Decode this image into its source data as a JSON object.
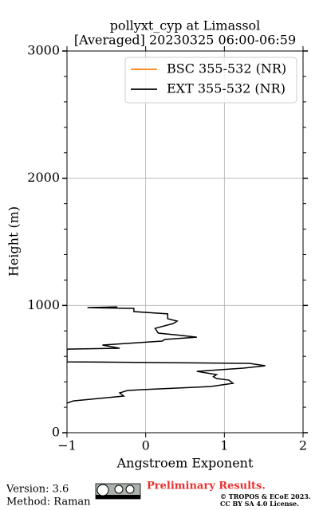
{
  "chart_data": {
    "type": "line",
    "title": [
      "pollyxt_cyp at Limassol",
      "[Averaged] 20230325 06:00-06:59"
    ],
    "x_label": "Angstroem Exponent",
    "y_label": "Height (m)",
    "xlim": [
      -1,
      2
    ],
    "xticks": [
      {
        "value": -1,
        "label": "−1"
      },
      0,
      1,
      2
    ],
    "ylim": [
      0,
      3000
    ],
    "yticks": [
      0,
      1000,
      2000,
      3000
    ],
    "yminorticks": [
      200,
      400,
      600,
      800,
      1200,
      1400,
      1600,
      1800,
      2200,
      2400,
      2600,
      2800
    ],
    "grid": true,
    "legend": "upper right",
    "series": [
      {
        "name": "BSC 355-532 (NR)",
        "color": "#ff7f0e",
        "values": [],
        "heights": []
      },
      {
        "name": "EXT 355-532 (NR)",
        "color": "#000000",
        "values": [
          -1,
          -0.92,
          -0.28,
          -0.33,
          -0.23,
          -0.05,
          0.83,
          1.11,
          1.06,
          0.9,
          0.86,
          0.9,
          0.65,
          1.24,
          1.52,
          1.32,
          -1,
          -1,
          -0.33,
          -0.55,
          -0.09,
          0.21,
          0.24,
          0.65,
          0.46,
          0.16,
          0.12,
          0.35,
          0.4,
          0.28,
          0.28,
          -0.15,
          -0.15,
          -0.74,
          -0.36
        ],
        "heights": [
          232,
          250,
          288,
          313,
          332,
          338,
          363,
          388,
          413,
          426,
          440,
          457,
          482,
          507,
          526,
          545,
          557,
          657,
          664,
          689,
          708,
          720,
          733,
          751,
          764,
          783,
          820,
          858,
          877,
          896,
          934,
          952,
          977,
          983,
          989
        ]
      }
    ]
  },
  "footer": {
    "version": "Version: 3.6",
    "method": "Method: Raman",
    "status": "Preliminary Results.",
    "copyright": "© TROPOS & ECoE 2023.",
    "license": "CC BY SA 4.0 License."
  }
}
